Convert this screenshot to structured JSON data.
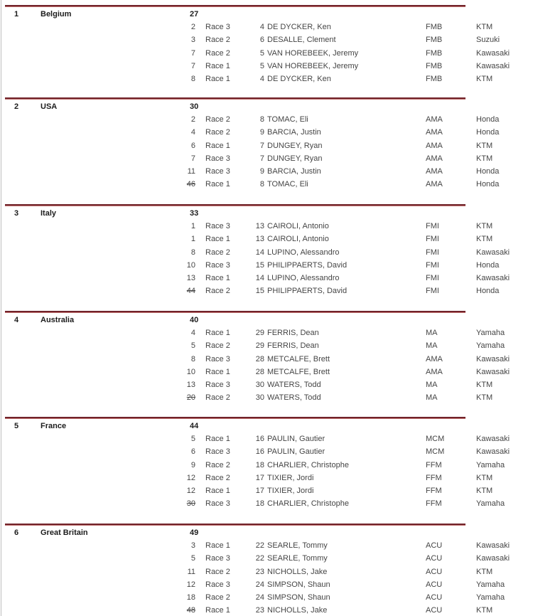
{
  "colors": {
    "divider_dark": "#71232a",
    "divider_light": "#c0716f",
    "page_border": "#bdbdbd",
    "header_text": "#1c1c1c",
    "row_text": "#454545"
  },
  "table": {
    "blocks": [
      {
        "rank": "1",
        "country": "Belgium",
        "points": "27",
        "rows": [
          {
            "pos": "2",
            "struck": false,
            "race": "Race 3",
            "num": "4",
            "name": "DE DYCKER, Ken",
            "fed": "FMB",
            "brand": "KTM"
          },
          {
            "pos": "3",
            "struck": false,
            "race": "Race 2",
            "num": "6",
            "name": "DESALLE, Clement",
            "fed": "FMB",
            "brand": "Suzuki"
          },
          {
            "pos": "7",
            "struck": false,
            "race": "Race 2",
            "num": "5",
            "name": "VAN HOREBEEK, Jeremy",
            "fed": "FMB",
            "brand": "Kawasaki"
          },
          {
            "pos": "7",
            "struck": false,
            "race": "Race 1",
            "num": "5",
            "name": "VAN HOREBEEK, Jeremy",
            "fed": "FMB",
            "brand": "Kawasaki"
          },
          {
            "pos": "8",
            "struck": false,
            "race": "Race 1",
            "num": "4",
            "name": "DE DYCKER, Ken",
            "fed": "FMB",
            "brand": "KTM"
          }
        ]
      },
      {
        "rank": "2",
        "country": "USA",
        "points": "30",
        "rows": [
          {
            "pos": "2",
            "struck": false,
            "race": "Race 2",
            "num": "8",
            "name": "TOMAC, Eli",
            "fed": "AMA",
            "brand": "Honda"
          },
          {
            "pos": "4",
            "struck": false,
            "race": "Race 2",
            "num": "9",
            "name": "BARCIA, Justin",
            "fed": "AMA",
            "brand": "Honda"
          },
          {
            "pos": "6",
            "struck": false,
            "race": "Race 1",
            "num": "7",
            "name": "DUNGEY, Ryan",
            "fed": "AMA",
            "brand": "KTM"
          },
          {
            "pos": "7",
            "struck": false,
            "race": "Race 3",
            "num": "7",
            "name": "DUNGEY, Ryan",
            "fed": "AMA",
            "brand": "KTM"
          },
          {
            "pos": "11",
            "struck": false,
            "race": "Race 3",
            "num": "9",
            "name": "BARCIA, Justin",
            "fed": "AMA",
            "brand": "Honda"
          },
          {
            "pos": "46",
            "struck": true,
            "race": "Race 1",
            "num": "8",
            "name": "TOMAC, Eli",
            "fed": "AMA",
            "brand": "Honda"
          }
        ]
      },
      {
        "rank": "3",
        "country": "Italy",
        "points": "33",
        "rows": [
          {
            "pos": "1",
            "struck": false,
            "race": "Race 3",
            "num": "13",
            "name": "CAIROLI, Antonio",
            "fed": "FMI",
            "brand": "KTM"
          },
          {
            "pos": "1",
            "struck": false,
            "race": "Race 1",
            "num": "13",
            "name": "CAIROLI, Antonio",
            "fed": "FMI",
            "brand": "KTM"
          },
          {
            "pos": "8",
            "struck": false,
            "race": "Race 2",
            "num": "14",
            "name": "LUPINO, Alessandro",
            "fed": "FMI",
            "brand": "Kawasaki"
          },
          {
            "pos": "10",
            "struck": false,
            "race": "Race 3",
            "num": "15",
            "name": "PHILIPPAERTS, David",
            "fed": "FMI",
            "brand": "Honda"
          },
          {
            "pos": "13",
            "struck": false,
            "race": "Race 1",
            "num": "14",
            "name": "LUPINO, Alessandro",
            "fed": "FMI",
            "brand": "Kawasaki"
          },
          {
            "pos": "44",
            "struck": true,
            "race": "Race 2",
            "num": "15",
            "name": "PHILIPPAERTS, David",
            "fed": "FMI",
            "brand": "Honda"
          }
        ]
      },
      {
        "rank": "4",
        "country": "Australia",
        "points": "40",
        "rows": [
          {
            "pos": "4",
            "struck": false,
            "race": "Race 1",
            "num": "29",
            "name": "FERRIS, Dean",
            "fed": "MA",
            "brand": "Yamaha"
          },
          {
            "pos": "5",
            "struck": false,
            "race": "Race 2",
            "num": "29",
            "name": "FERRIS, Dean",
            "fed": "MA",
            "brand": "Yamaha"
          },
          {
            "pos": "8",
            "struck": false,
            "race": "Race 3",
            "num": "28",
            "name": "METCALFE, Brett",
            "fed": "AMA",
            "brand": "Kawasaki"
          },
          {
            "pos": "10",
            "struck": false,
            "race": "Race 1",
            "num": "28",
            "name": "METCALFE, Brett",
            "fed": "AMA",
            "brand": "Kawasaki"
          },
          {
            "pos": "13",
            "struck": false,
            "race": "Race 3",
            "num": "30",
            "name": "WATERS, Todd",
            "fed": "MA",
            "brand": "KTM"
          },
          {
            "pos": "20",
            "struck": true,
            "race": "Race 2",
            "num": "30",
            "name": "WATERS, Todd",
            "fed": "MA",
            "brand": "KTM"
          }
        ]
      },
      {
        "rank": "5",
        "country": "France",
        "points": "44",
        "rows": [
          {
            "pos": "5",
            "struck": false,
            "race": "Race 1",
            "num": "16",
            "name": "PAULIN, Gautier",
            "fed": "MCM",
            "brand": "Kawasaki"
          },
          {
            "pos": "6",
            "struck": false,
            "race": "Race 3",
            "num": "16",
            "name": "PAULIN, Gautier",
            "fed": "MCM",
            "brand": "Kawasaki"
          },
          {
            "pos": "9",
            "struck": false,
            "race": "Race 2",
            "num": "18",
            "name": "CHARLIER, Christophe",
            "fed": "FFM",
            "brand": "Yamaha"
          },
          {
            "pos": "12",
            "struck": false,
            "race": "Race 2",
            "num": "17",
            "name": "TIXIER, Jordi",
            "fed": "FFM",
            "brand": "KTM"
          },
          {
            "pos": "12",
            "struck": false,
            "race": "Race 1",
            "num": "17",
            "name": "TIXIER, Jordi",
            "fed": "FFM",
            "brand": "KTM"
          },
          {
            "pos": "30",
            "struck": true,
            "race": "Race 3",
            "num": "18",
            "name": "CHARLIER, Christophe",
            "fed": "FFM",
            "brand": "Yamaha"
          }
        ]
      },
      {
        "rank": "6",
        "country": "Great Britain",
        "points": "49",
        "rows": [
          {
            "pos": "3",
            "struck": false,
            "race": "Race 1",
            "num": "22",
            "name": "SEARLE, Tommy",
            "fed": "ACU",
            "brand": "Kawasaki"
          },
          {
            "pos": "5",
            "struck": false,
            "race": "Race 3",
            "num": "22",
            "name": "SEARLE, Tommy",
            "fed": "ACU",
            "brand": "Kawasaki"
          },
          {
            "pos": "11",
            "struck": false,
            "race": "Race 2",
            "num": "23",
            "name": "NICHOLLS, Jake",
            "fed": "ACU",
            "brand": "KTM"
          },
          {
            "pos": "12",
            "struck": false,
            "race": "Race 3",
            "num": "24",
            "name": "SIMPSON, Shaun",
            "fed": "ACU",
            "brand": "Yamaha"
          },
          {
            "pos": "18",
            "struck": false,
            "race": "Race 2",
            "num": "24",
            "name": "SIMPSON, Shaun",
            "fed": "ACU",
            "brand": "Yamaha"
          },
          {
            "pos": "48",
            "struck": true,
            "race": "Race 1",
            "num": "23",
            "name": "NICHOLLS, Jake",
            "fed": "ACU",
            "brand": "KTM"
          }
        ]
      }
    ]
  }
}
